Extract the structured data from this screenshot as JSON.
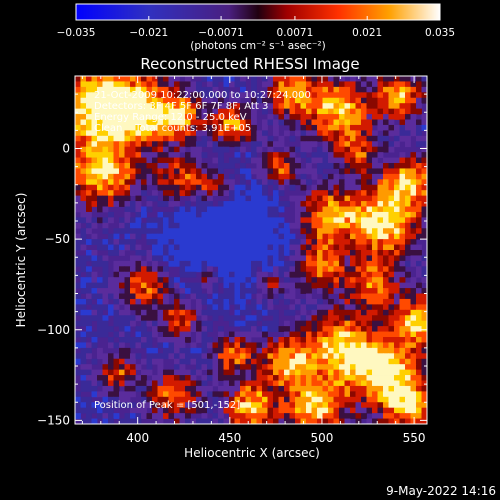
{
  "chart_data": {
    "type": "heatmap",
    "title": "Reconstructed RHESSI Image",
    "xlabel": "Heliocentric X (arcsec)",
    "ylabel": "Heliocentric Y (arcsec)",
    "xlim": [
      366,
      557
    ],
    "ylim": [
      -152,
      40
    ],
    "x_ticks": [
      400,
      450,
      500,
      550
    ],
    "x_tick_labels": [
      "400",
      "450",
      "500",
      "550"
    ],
    "y_ticks": [
      0,
      -50,
      -100,
      -150
    ],
    "y_tick_labels": [
      "0",
      "−50",
      "−100",
      "−150"
    ],
    "colorbar": {
      "min": -0.035,
      "max": 0.035,
      "ticks": [
        -0.035,
        -0.021,
        -0.0071,
        0.0071,
        0.021,
        0.035
      ],
      "tick_labels": [
        "−0.035",
        "−0.021",
        "−0.0071",
        "0.0071",
        "0.021",
        "0.035"
      ],
      "unit_label": "(photons cm⁻² s⁻¹ asec⁻²)"
    },
    "info_lines": [
      "21-Oct-2009 10:22:00.000 to 10:27:24.000",
      "Detectors: 3F 4F 5F 6F 7F 8F, Att 3",
      "Energy Range: 12.0 - 25.0 keV",
      "Clean    Total counts: 3.91E+05"
    ],
    "peak_label": "Position of Peak = [501,-152]",
    "colors": {
      "negative": "#1a1aff",
      "low": "#5a2aa8",
      "mid": "#d21a00",
      "high": "#ffcc00",
      "top": "#ffffff"
    }
  },
  "footer": {
    "timestamp": "9-May-2022 14:16"
  }
}
